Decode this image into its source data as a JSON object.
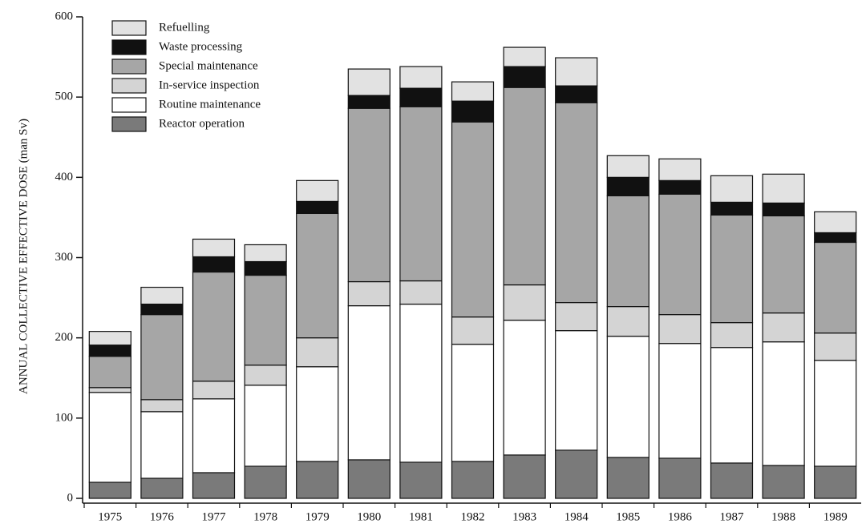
{
  "chart_data": {
    "type": "bar",
    "stacked": true,
    "y_label": "ANNUAL COLLECTIVE EFFECTIVE DOSE (man Sv)",
    "categories": [
      "1975",
      "1976",
      "1977",
      "1978",
      "1979",
      "1980",
      "1981",
      "1982",
      "1983",
      "1984",
      "1985",
      "1986",
      "1987",
      "1988",
      "1989"
    ],
    "series": [
      {
        "name": "Reactor operation",
        "color": "#7a7a7a",
        "values": [
          20,
          25,
          32,
          40,
          46,
          48,
          45,
          46,
          54,
          60,
          51,
          50,
          44,
          41,
          40
        ]
      },
      {
        "name": "Routine maintenance",
        "color": "#ffffff",
        "values": [
          112,
          83,
          92,
          101,
          118,
          192,
          197,
          146,
          168,
          149,
          151,
          143,
          144,
          154,
          132
        ]
      },
      {
        "name": "In-service inspection",
        "color": "#d4d4d4",
        "values": [
          6,
          15,
          22,
          25,
          36,
          30,
          29,
          34,
          44,
          35,
          37,
          36,
          31,
          36,
          34
        ]
      },
      {
        "name": "Special maintenance",
        "color": "#a6a6a6",
        "values": [
          39,
          106,
          136,
          112,
          155,
          216,
          217,
          243,
          246,
          249,
          138,
          150,
          134,
          121,
          113
        ]
      },
      {
        "name": "Waste processing",
        "color": "#111111",
        "values": [
          14,
          13,
          19,
          17,
          15,
          16,
          23,
          26,
          26,
          21,
          23,
          17,
          16,
          16,
          12
        ]
      },
      {
        "name": "Refuelling",
        "color": "#e2e2e2",
        "values": [
          17,
          21,
          22,
          21,
          26,
          33,
          27,
          24,
          24,
          35,
          27,
          27,
          33,
          36,
          26
        ]
      }
    ],
    "ylim": [
      0,
      600
    ],
    "yticks": [
      0,
      100,
      200,
      300,
      400,
      500,
      600
    ]
  }
}
